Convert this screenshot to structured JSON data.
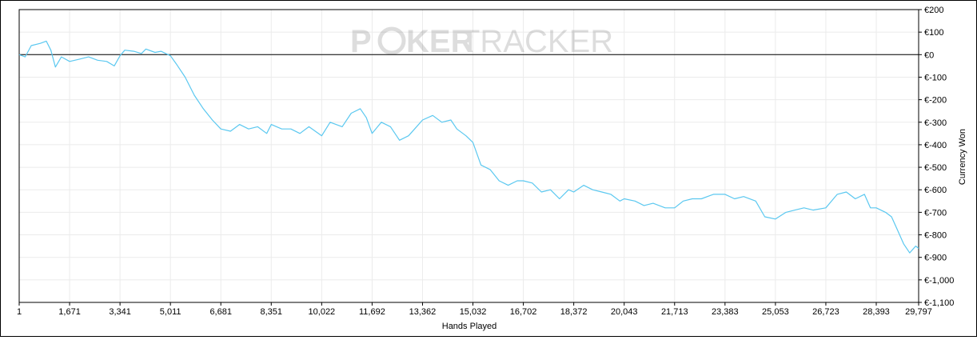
{
  "watermark": {
    "brand_left": "P",
    "brand_mid": "KER",
    "brand_right": "TRACKER"
  },
  "chart_data": {
    "type": "line",
    "xlabel": "Hands Played",
    "ylabel": "Currency Won",
    "xlim": [
      1,
      29797
    ],
    "ylim": [
      -1100,
      200
    ],
    "x_ticks": [
      1,
      1671,
      3341,
      5011,
      6681,
      8351,
      10022,
      11692,
      13362,
      15032,
      16702,
      18372,
      20043,
      21713,
      23383,
      25053,
      26723,
      28393,
      29797
    ],
    "x_tick_labels": [
      "1",
      "1,671",
      "3,341",
      "5,011",
      "6,681",
      "8,351",
      "10,022",
      "11,692",
      "13,362",
      "15,032",
      "16,702",
      "18,372",
      "20,043",
      "21,713",
      "23,383",
      "25,053",
      "26,723",
      "28,393",
      "29,797"
    ],
    "y_ticks": [
      200,
      100,
      0,
      -100,
      -200,
      -300,
      -400,
      -500,
      -600,
      -700,
      -800,
      -900,
      -1000,
      -1100
    ],
    "y_tick_labels": [
      "€200",
      "€100",
      "€0",
      "€-100",
      "€-200",
      "€-300",
      "€-400",
      "€-500",
      "€-600",
      "€-700",
      "€-800",
      "€-900",
      "€-1,000",
      "€-1,100"
    ],
    "grid": true,
    "zero_line": true,
    "series": [
      {
        "color": "#5bc8f0",
        "x": [
          1,
          200,
          400,
          700,
          900,
          1050,
          1200,
          1400,
          1671,
          2000,
          2300,
          2600,
          2900,
          3150,
          3341,
          3500,
          3800,
          4050,
          4200,
          4500,
          4700,
          5011,
          5200,
          5500,
          5800,
          6100,
          6400,
          6681,
          7000,
          7300,
          7600,
          7900,
          8200,
          8351,
          8700,
          9000,
          9300,
          9600,
          10022,
          10300,
          10700,
          11000,
          11300,
          11500,
          11692,
          12000,
          12300,
          12600,
          12900,
          13100,
          13362,
          13700,
          14000,
          14300,
          14500,
          14800,
          15032,
          15300,
          15600,
          15900,
          16200,
          16500,
          16702,
          17000,
          17300,
          17600,
          17900,
          18200,
          18372,
          18700,
          19000,
          19300,
          19600,
          19900,
          20043,
          20400,
          20700,
          21000,
          21400,
          21713,
          22000,
          22300,
          22600,
          23000,
          23383,
          23700,
          24000,
          24400,
          24700,
          25053,
          25400,
          25700,
          26000,
          26300,
          26723,
          27100,
          27400,
          27700,
          28000,
          28200,
          28393,
          28700,
          28900,
          29100,
          29300,
          29500,
          29700,
          29797
        ],
        "y": [
          0,
          -10,
          40,
          50,
          60,
          20,
          -55,
          -10,
          -30,
          -20,
          -10,
          -25,
          -30,
          -50,
          -5,
          20,
          15,
          5,
          25,
          10,
          15,
          -5,
          -40,
          -100,
          -180,
          -240,
          -290,
          -330,
          -340,
          -310,
          -330,
          -320,
          -350,
          -310,
          -330,
          -330,
          -350,
          -320,
          -360,
          -300,
          -320,
          -260,
          -240,
          -280,
          -350,
          -300,
          -320,
          -380,
          -360,
          -330,
          -290,
          -270,
          -300,
          -290,
          -330,
          -360,
          -390,
          -490,
          -510,
          -560,
          -580,
          -560,
          -560,
          -570,
          -610,
          -600,
          -640,
          -600,
          -610,
          -580,
          -600,
          -610,
          -620,
          -650,
          -640,
          -650,
          -670,
          -660,
          -680,
          -680,
          -650,
          -640,
          -640,
          -620,
          -620,
          -640,
          -630,
          -650,
          -720,
          -730,
          -700,
          -690,
          -680,
          -690,
          -680,
          -620,
          -610,
          -640,
          -620,
          -680,
          -680,
          -700,
          -720,
          -780,
          -840,
          -880,
          -850,
          -860
        ]
      }
    ]
  }
}
